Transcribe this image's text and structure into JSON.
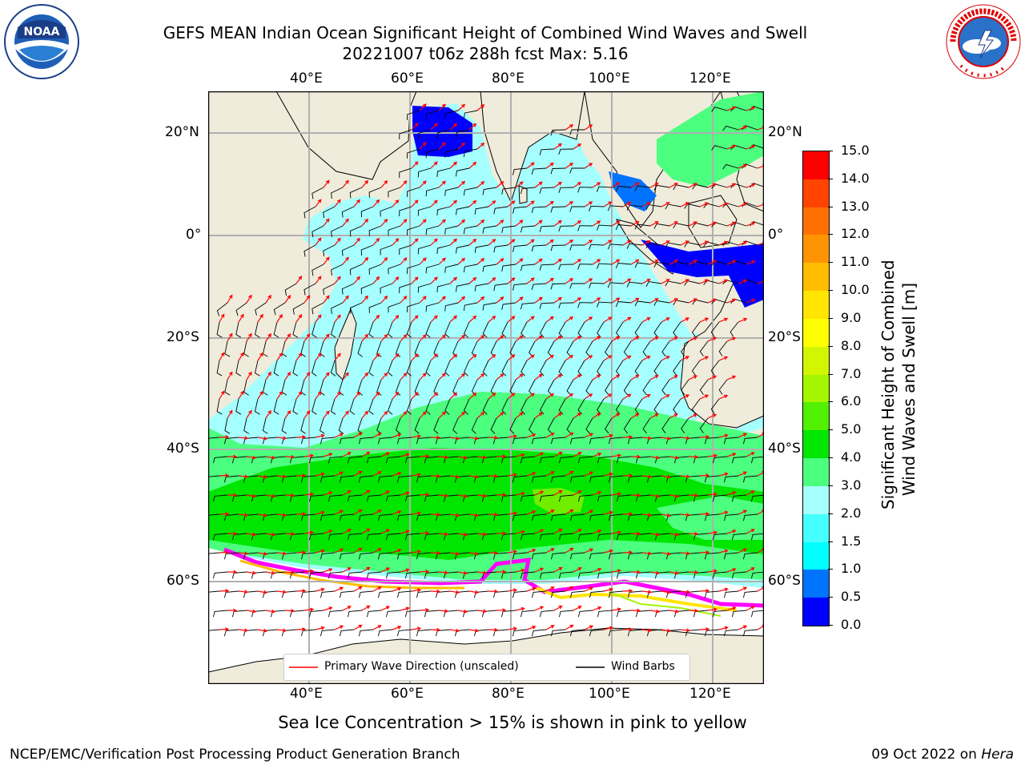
{
  "title": {
    "line1": "GEFS MEAN Indian Ocean Significant Height of Combined Wind Waves and Swell",
    "line2": "20221007 t06z 288h fcst   Max: 5.16"
  },
  "logos": {
    "left": {
      "icon": "noaa-logo",
      "text": "NOAA"
    },
    "right": {
      "icon": "nws-logo",
      "text": "NATIONAL WEATHER SERVICE"
    }
  },
  "map": {
    "lon_ticks": [
      "40°E",
      "60°E",
      "80°E",
      "100°E",
      "120°E"
    ],
    "lat_ticks_left": [
      "20°N",
      "0°",
      "20°S",
      "40°S",
      "60°S"
    ],
    "lat_ticks_right": [
      "20°N",
      "0°",
      "20°S",
      "40°S",
      "60°S"
    ],
    "colors": {
      "land": "#efecdb",
      "ice_free": "#ffffff",
      "grid": "#b0b0b0",
      "arrow": "#ff0000",
      "barb": "#000000"
    }
  },
  "colorbar": {
    "label_line1": "Significant Height of Combined",
    "label_line2": "Wind Waves and Swell [m]",
    "ticks": [
      "0.0",
      "0.5",
      "1.0",
      "1.5",
      "2.0",
      "3.0",
      "4.0",
      "5.0",
      "6.0",
      "7.0",
      "8.0",
      "9.0",
      "10.0",
      "11.0",
      "12.0",
      "13.0",
      "14.0",
      "15.0"
    ],
    "colors": [
      "#0000ff",
      "#0073ff",
      "#00ffff",
      "#45ffff",
      "#a6ffff",
      "#4cff7f",
      "#00e600",
      "#51f000",
      "#a6f500",
      "#d2f500",
      "#ffff00",
      "#ffe500",
      "#ffbd00",
      "#ff9400",
      "#ff7000",
      "#ff4400",
      "#ff0000"
    ]
  },
  "legend": {
    "wave_label": "Primary Wave Direction (unscaled)",
    "barb_label": "Wind Barbs"
  },
  "caption": "Sea Ice Concentration > 15% is shown in pink to yellow",
  "footer": {
    "left": "NCEP/EMC/Verification Post Processing Product Generation Branch",
    "right_date": "09 Oct 2022 on ",
    "right_host": "Hera"
  }
}
